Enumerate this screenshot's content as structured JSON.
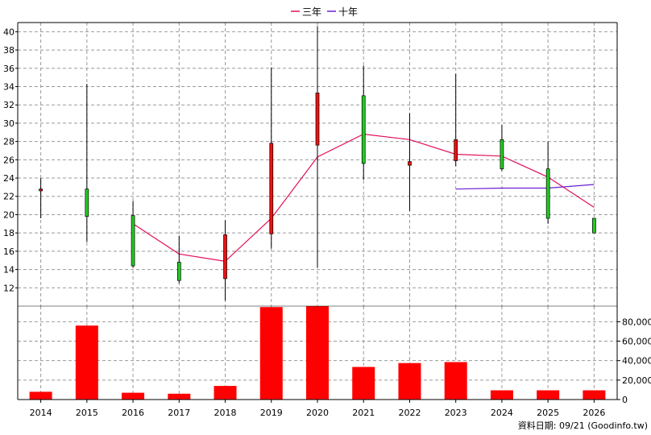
{
  "chart_data": [
    {
      "type": "candlestick",
      "x_categories": [
        "2014",
        "2015",
        "2016",
        "2017",
        "2018",
        "2019",
        "2020",
        "2021",
        "2022",
        "2023",
        "2024",
        "2025",
        "2026"
      ],
      "ylim": [
        10,
        41
      ],
      "y_ticks": [
        12,
        14,
        16,
        18,
        20,
        22,
        24,
        26,
        28,
        30,
        32,
        34,
        36,
        38,
        40
      ],
      "grid": true,
      "legend": {
        "placement": "top-center",
        "items": [
          {
            "label": "三年",
            "color": "#e0105e"
          },
          {
            "label": "十年",
            "color": "#6a1fd0"
          }
        ]
      },
      "candles": [
        {
          "year": "2014",
          "open": 22.8,
          "close": 22.6,
          "high": 24.0,
          "low": 19.6
        },
        {
          "year": "2015",
          "open": 19.8,
          "close": 22.8,
          "high": 34.3,
          "low": 17.0
        },
        {
          "year": "2016",
          "open": 14.4,
          "close": 19.9,
          "high": 21.5,
          "low": 14.2
        },
        {
          "year": "2017",
          "open": 12.8,
          "close": 14.8,
          "high": 17.7,
          "low": 12.5
        },
        {
          "year": "2018",
          "open": 17.8,
          "close": 13.0,
          "high": 19.4,
          "low": 10.6
        },
        {
          "year": "2019",
          "open": 27.8,
          "close": 17.9,
          "high": 36.1,
          "low": 16.3
        },
        {
          "year": "2020",
          "open": 33.3,
          "close": 27.6,
          "high": 40.6,
          "low": 14.2
        },
        {
          "year": "2021",
          "open": 25.6,
          "close": 33.0,
          "high": 36.3,
          "low": 23.8
        },
        {
          "year": "2022",
          "open": 25.8,
          "close": 25.4,
          "high": 31.1,
          "low": 20.4
        },
        {
          "year": "2023",
          "open": 28.2,
          "close": 25.9,
          "high": 35.4,
          "low": 25.3
        },
        {
          "year": "2024",
          "open": 25.0,
          "close": 28.2,
          "high": 29.8,
          "low": 24.8
        },
        {
          "year": "2025",
          "open": 19.6,
          "close": 25.0,
          "high": 28.0,
          "low": 19.0
        },
        {
          "year": "2026",
          "open": 18.0,
          "close": 19.6,
          "high": 19.6,
          "low": 18.0
        }
      ],
      "series": [
        {
          "name": "三年",
          "color": "#e0105e",
          "points": [
            [
              "2016",
              19.0
            ],
            [
              "2017",
              15.7
            ],
            [
              "2018",
              14.9
            ],
            [
              "2019",
              19.6
            ],
            [
              "2020",
              26.3
            ],
            [
              "2021",
              28.8
            ],
            [
              "2022",
              28.2
            ],
            [
              "2023",
              26.6
            ],
            [
              "2024",
              26.4
            ],
            [
              "2025",
              24.1
            ],
            [
              "2026",
              20.8
            ]
          ]
        },
        {
          "name": "十年",
          "color": "#6a1fd0",
          "points": [
            [
              "2023",
              22.8
            ],
            [
              "2024",
              22.9
            ],
            [
              "2025",
              22.9
            ],
            [
              "2026",
              23.3
            ]
          ]
        }
      ],
      "up_color": "#22cc22",
      "down_color": "#ee1111"
    },
    {
      "type": "bar",
      "categories": [
        "2014",
        "2015",
        "2016",
        "2017",
        "2018",
        "2019",
        "2020",
        "2021",
        "2022",
        "2023",
        "2024",
        "2025",
        "2026"
      ],
      "values": [
        8000,
        76000,
        7000,
        6000,
        14000,
        95000,
        96000,
        33500,
        37500,
        38500,
        9500,
        9500,
        9500
      ],
      "ylim": [
        0,
        96000
      ],
      "y_ticks": [
        "0",
        "20,000",
        "40,000",
        "60,000",
        "80,000"
      ],
      "y_tick_values": [
        0,
        20000,
        40000,
        60000,
        80000
      ],
      "grid": true,
      "bar_color": "#ff0000"
    }
  ],
  "footer_text": "資料日期: 09/21 (Goodinfo.tw)"
}
